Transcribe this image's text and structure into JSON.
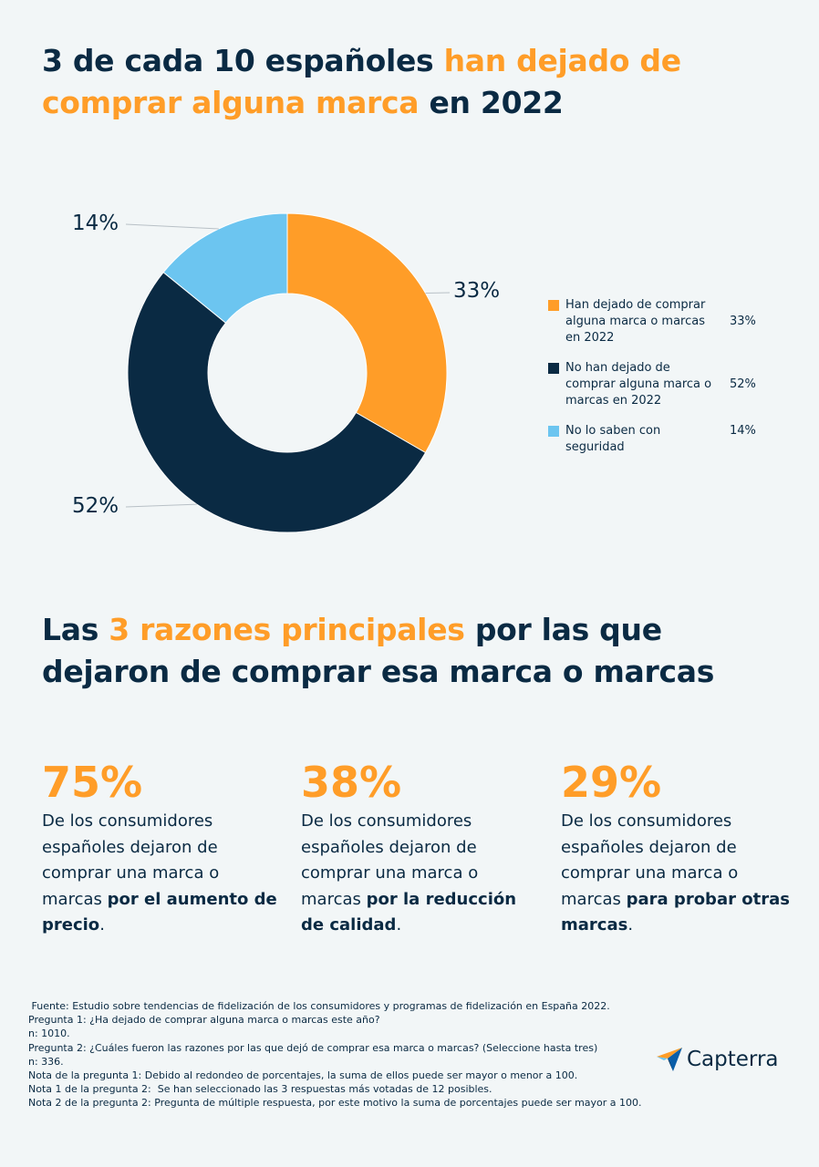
{
  "title": {
    "part1": "3 de cada 10 españoles ",
    "highlight": "han dejado de comprar alguna marca",
    "part2": " en 2022"
  },
  "chart_data": {
    "type": "pie",
    "categories": [
      "Han dejado de comprar alguna marca o marcas en 2022",
      "No han dejado de comprar alguna marca o marcas en 2022",
      "No lo saben con seguridad"
    ],
    "values": [
      33,
      52,
      14
    ],
    "value_labels": [
      "33%",
      "52%",
      "14%"
    ],
    "colors": [
      "#ff9d28",
      "#0a2a43",
      "#6cc5f0"
    ],
    "legend_placement": "right"
  },
  "subtitle": {
    "part1": "Las ",
    "highlight": "3 razones principales",
    "part2": " por las que dejaron de comprar esa marca o marcas"
  },
  "stats": [
    {
      "number": "75%",
      "text": "De los consumidores españoles dejaron de comprar una marca o marcas ",
      "bold": "por el aumento de precio",
      "end": "."
    },
    {
      "number": "38%",
      "text": "De los consumidores españoles dejaron de comprar una marca o marcas ",
      "bold": "por la reducción de calidad",
      "end": "."
    },
    {
      "number": "29%",
      "text": "De los consumidores españoles dejaron de comprar una marca o marcas ",
      "bold": "para probar otras marcas",
      "end": "."
    }
  ],
  "footnotes": [
    " Fuente: Estudio sobre tendencias de fidelización de los consumidores y programas de fidelización en España 2022.",
    "Pregunta 1: ¿Ha dejado de comprar alguna marca o marcas este año?",
    "n: 1010.",
    "Pregunta 2: ¿Cuáles fueron las razones por las que dejó de comprar esa marca o marcas? (Seleccione hasta tres)",
    "n: 336.",
    "Nota de la pregunta 1: Debido al redondeo de porcentajes, la suma de ellos puede ser mayor o menor a 100.",
    "Nota 1 de la pregunta 2:  Se han seleccionado las 3 respuestas más votadas de 12 posibles.",
    "Nota 2 de la pregunta 2: Pregunta de múltiple respuesta, por este motivo la suma de porcentajes puede ser mayor a 100."
  ],
  "brand": {
    "name": "Capterra",
    "logo_icon": "capterra-arrow-icon"
  }
}
